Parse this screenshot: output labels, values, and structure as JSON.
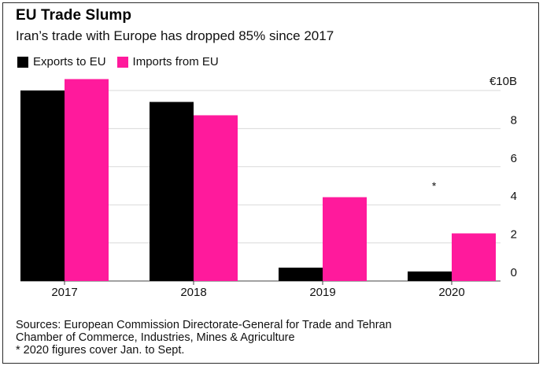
{
  "chart_data": {
    "type": "bar",
    "title": "EU Trade Slump",
    "subtitle": "Iran’s trade with Europe has dropped 85% since 2017",
    "categories": [
      "2017",
      "2018",
      "2019",
      "2020"
    ],
    "series": [
      {
        "name": "Exports to EU",
        "color": "#000000",
        "values": [
          10.0,
          9.4,
          0.7,
          0.5
        ]
      },
      {
        "name": "Imports from EU",
        "color": "#ff1a9c",
        "values": [
          10.6,
          8.7,
          4.4,
          2.5
        ]
      }
    ],
    "ylim": [
      0,
      10
    ],
    "yticks": [
      0,
      2,
      4,
      6,
      8,
      10
    ],
    "ytick_labels": [
      "0",
      "2",
      "4",
      "6",
      "8",
      "€10B"
    ],
    "grid": true,
    "legend_position": "top-left",
    "annotation": {
      "text": "*",
      "category": "2020",
      "y": 4.8
    }
  },
  "footer": {
    "sources_line1": "Sources: European Commission Directorate-General for Trade and Tehran",
    "sources_line2": "Chamber of Commerce, Industries, Mines & Agriculture",
    "note": "* 2020 figures cover Jan. to Sept."
  }
}
